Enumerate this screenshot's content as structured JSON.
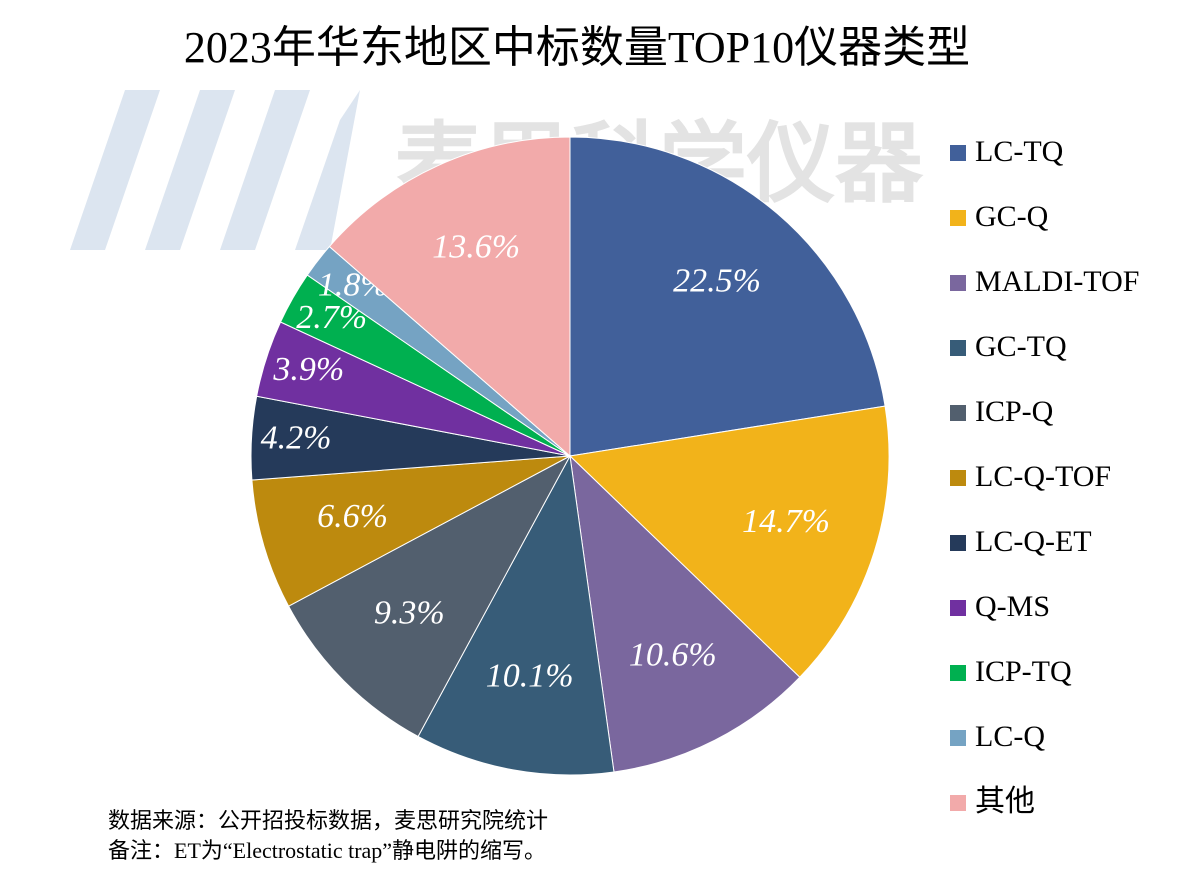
{
  "chart_data": {
    "type": "pie",
    "title": "2023年华东地区中标数量TOP10仪器类型",
    "watermark": "麦思科学仪器",
    "notes": [
      "数据来源：公开招投标数据，麦思研究院统计",
      "备注：ET为“Electrostatic trap”静电阱的缩写。"
    ],
    "categories": [
      "LC-TQ",
      "GC-Q",
      "MALDI-TOF",
      "GC-TQ",
      "ICP-Q",
      "LC-Q-TOF",
      "LC-Q-ET",
      "Q-MS",
      "ICP-TQ",
      "LC-Q",
      "其他"
    ],
    "values": [
      22.5,
      14.7,
      10.6,
      10.1,
      9.3,
      6.6,
      4.2,
      3.9,
      2.7,
      1.8,
      13.6
    ],
    "value_labels": [
      "22.5%",
      "14.7%",
      "10.6%",
      "10.1%",
      "9.3%",
      "6.6%",
      "4.2%",
      "3.9%",
      "2.7%",
      "1.8%",
      "13.6%"
    ],
    "colors": [
      "#41609a",
      "#f2b31a",
      "#7a679e",
      "#375c78",
      "#525f6e",
      "#bd8a0e",
      "#253a5a",
      "#7030a0",
      "#00b050",
      "#75a3c3",
      "#f2aaaa"
    ],
    "legend": "right"
  }
}
